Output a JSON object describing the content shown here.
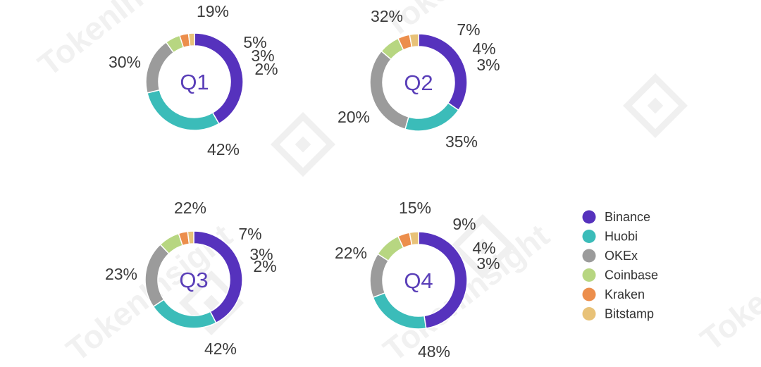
{
  "chart_data": {
    "type": "pie",
    "exchanges": [
      "Binance",
      "Huobi",
      "OKEx",
      "Coinbase",
      "Kraken",
      "Bitstamp"
    ],
    "colors": {
      "Binance": "#5632bd",
      "Huobi": "#3bbcb9",
      "OKEx": "#9b9b9b",
      "Coinbase": "#b7d681",
      "Kraken": "#ec8e4c",
      "Bitstamp": "#e8c278"
    },
    "charts": [
      {
        "label": "Q1",
        "values": [
          42,
          30,
          19,
          5,
          3,
          2
        ],
        "value_labels": [
          "42%",
          "30%",
          "19%",
          "5%",
          "3%",
          "2%"
        ]
      },
      {
        "label": "Q2",
        "values": [
          35,
          20,
          32,
          7,
          4,
          3
        ],
        "value_labels": [
          "35%",
          "20%",
          "32%",
          "7%",
          "4%",
          "3%"
        ]
      },
      {
        "label": "Q3",
        "values": [
          42,
          23,
          22,
          7,
          3,
          2
        ],
        "value_labels": [
          "42%",
          "23%",
          "22%",
          "7%",
          "3%",
          "2%"
        ]
      },
      {
        "label": "Q4",
        "values": [
          48,
          22,
          15,
          9,
          4,
          3
        ],
        "value_labels": [
          "48%",
          "22%",
          "15%",
          "9%",
          "4%",
          "3%"
        ]
      }
    ],
    "legend": {
      "placement": "right",
      "entries": [
        "Binance",
        "Huobi",
        "OKEx",
        "Coinbase",
        "Kraken",
        "Bitstamp"
      ]
    },
    "watermark": "TokenInsight"
  }
}
